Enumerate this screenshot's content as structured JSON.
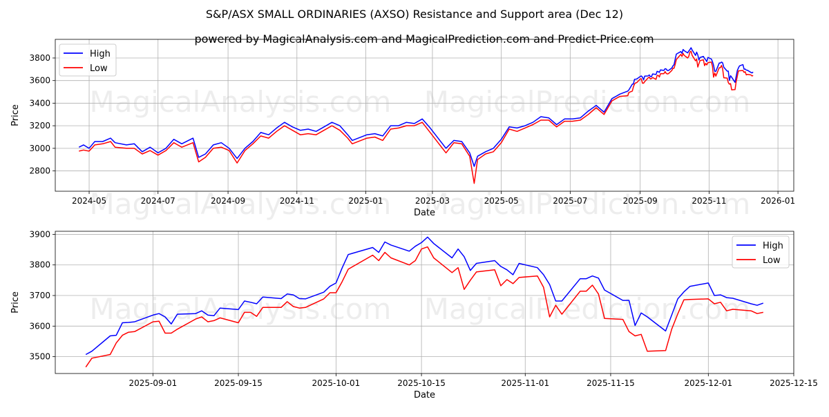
{
  "title": "S&P/ASX SMALL ORDINARIES (AXSO) Resistance and Support area (Dec 12)",
  "subtitle": "powered by MagicalAnalysis.com and MagicalPrediction.com and Predict-Price.com",
  "watermarks": [
    "MagicalAnalysis.com",
    "MagicalPrediction.com"
  ],
  "colors": {
    "high": "#0000ff",
    "low": "#ff0000",
    "grid": "#b0b0b0"
  },
  "chart_data": [
    {
      "type": "line",
      "xlabel": "Date",
      "ylabel": "Price",
      "grid": true,
      "legend_placement": "top-left",
      "legend": [
        "High",
        "Low"
      ],
      "x_ticks": [
        "2024-05",
        "2024-07",
        "2024-09",
        "2024-11",
        "2025-01",
        "2025-03",
        "2025-05",
        "2025-07",
        "2025-09",
        "2025-11",
        "2026-01"
      ],
      "y_ticks": [
        "2800",
        "3000",
        "3200",
        "3400",
        "3600",
        "3800"
      ],
      "xlim": [
        "2024-04-01",
        "2026-01-15"
      ],
      "ylim": [
        2620,
        3965
      ],
      "includes_recent_series_from_chart_2": true,
      "x": [
        "2024-04-22",
        "2024-04-26",
        "2024-05-01",
        "2024-05-06",
        "2024-05-13",
        "2024-05-20",
        "2024-05-24",
        "2024-06-03",
        "2024-06-10",
        "2024-06-17",
        "2024-06-24",
        "2024-07-01",
        "2024-07-08",
        "2024-07-15",
        "2024-07-22",
        "2024-08-01",
        "2024-08-06",
        "2024-08-12",
        "2024-08-19",
        "2024-08-26",
        "2024-09-02",
        "2024-09-09",
        "2024-09-16",
        "2024-09-23",
        "2024-09-30",
        "2024-10-07",
        "2024-10-14",
        "2024-10-21",
        "2024-10-28",
        "2024-11-04",
        "2024-11-11",
        "2024-11-18",
        "2024-11-25",
        "2024-12-02",
        "2024-12-09",
        "2024-12-16",
        "2024-12-20",
        "2025-01-02",
        "2025-01-09",
        "2025-01-16",
        "2025-01-23",
        "2025-01-30",
        "2025-02-06",
        "2025-02-13",
        "2025-02-20",
        "2025-02-27",
        "2025-03-06",
        "2025-03-13",
        "2025-03-20",
        "2025-03-27",
        "2025-04-03",
        "2025-04-07",
        "2025-04-10",
        "2025-04-17",
        "2025-04-24",
        "2025-05-01",
        "2025-05-08",
        "2025-05-15",
        "2025-05-22",
        "2025-05-29",
        "2025-06-05",
        "2025-06-12",
        "2025-06-19",
        "2025-06-26",
        "2025-07-03",
        "2025-07-10",
        "2025-07-17",
        "2025-07-24",
        "2025-07-31",
        "2025-08-07",
        "2025-08-14"
      ],
      "series": [
        {
          "name": "High",
          "values": [
            3010,
            3030,
            3000,
            3060,
            3060,
            3090,
            3050,
            3030,
            3040,
            2970,
            3010,
            2960,
            3000,
            3080,
            3040,
            3090,
            2920,
            2950,
            3030,
            3050,
            3000,
            2910,
            3000,
            3060,
            3140,
            3120,
            3180,
            3230,
            3190,
            3160,
            3170,
            3150,
            3190,
            3230,
            3200,
            3120,
            3070,
            3120,
            3130,
            3110,
            3200,
            3200,
            3230,
            3220,
            3260,
            3180,
            3090,
            3000,
            3070,
            3060,
            2960,
            2840,
            2930,
            2970,
            3000,
            3080,
            3190,
            3180,
            3200,
            3230,
            3280,
            3270,
            3210,
            3260,
            3260,
            3270,
            3330,
            3380,
            3320,
            3440,
            3480
          ]
        },
        {
          "name": "Low",
          "values": [
            2975,
            2985,
            2975,
            3030,
            3040,
            3060,
            3010,
            3000,
            3000,
            2950,
            2980,
            2940,
            2980,
            3050,
            3010,
            3050,
            2880,
            2920,
            3000,
            3010,
            2980,
            2870,
            2980,
            3040,
            3110,
            3090,
            3150,
            3200,
            3160,
            3120,
            3130,
            3120,
            3160,
            3200,
            3160,
            3090,
            3040,
            3090,
            3100,
            3070,
            3170,
            3180,
            3200,
            3200,
            3230,
            3140,
            3050,
            2960,
            3050,
            3040,
            2930,
            2690,
            2900,
            2950,
            2970,
            3050,
            3170,
            3150,
            3180,
            3210,
            3250,
            3250,
            3190,
            3240,
            3240,
            3250,
            3300,
            3360,
            3300,
            3420,
            3460
          ]
        }
      ]
    },
    {
      "type": "line",
      "xlabel": "Date",
      "ylabel": "Price",
      "grid": true,
      "legend_placement": "top-right",
      "legend": [
        "High",
        "Low"
      ],
      "x_ticks": [
        "2025-09-01",
        "2025-09-15",
        "2025-10-01",
        "2025-10-15",
        "2025-11-01",
        "2025-11-15",
        "2025-12-01",
        "2025-12-15"
      ],
      "y_ticks": [
        "3500",
        "3600",
        "3700",
        "3800",
        "3900"
      ],
      "xlim": [
        "2025-08-16",
        "2025-12-15"
      ],
      "ylim": [
        3445,
        3910
      ],
      "x": [
        "2025-08-21",
        "2025-08-22",
        "2025-08-25",
        "2025-08-26",
        "2025-08-27",
        "2025-08-28",
        "2025-08-29",
        "2025-09-01",
        "2025-09-02",
        "2025-09-03",
        "2025-09-04",
        "2025-09-05",
        "2025-09-08",
        "2025-09-09",
        "2025-09-10",
        "2025-09-11",
        "2025-09-12",
        "2025-09-15",
        "2025-09-16",
        "2025-09-17",
        "2025-09-18",
        "2025-09-19",
        "2025-09-22",
        "2025-09-23",
        "2025-09-24",
        "2025-09-25",
        "2025-09-26",
        "2025-09-29",
        "2025-09-30",
        "2025-10-01",
        "2025-10-02",
        "2025-10-03",
        "2025-10-07",
        "2025-10-08",
        "2025-10-09",
        "2025-10-10",
        "2025-10-13",
        "2025-10-14",
        "2025-10-15",
        "2025-10-16",
        "2025-10-17",
        "2025-10-20",
        "2025-10-21",
        "2025-10-22",
        "2025-10-23",
        "2025-10-24",
        "2025-10-27",
        "2025-10-28",
        "2025-10-29",
        "2025-10-30",
        "2025-10-31",
        "2025-11-03",
        "2025-11-04",
        "2025-11-05",
        "2025-11-06",
        "2025-11-07",
        "2025-11-10",
        "2025-11-11",
        "2025-11-12",
        "2025-11-13",
        "2025-11-14",
        "2025-11-17",
        "2025-11-18",
        "2025-11-19",
        "2025-11-20",
        "2025-11-21",
        "2025-11-24",
        "2025-11-25",
        "2025-11-26",
        "2025-11-27",
        "2025-11-28",
        "2025-12-01",
        "2025-12-02",
        "2025-12-03",
        "2025-12-04",
        "2025-12-05",
        "2025-12-08",
        "2025-12-09",
        "2025-12-10"
      ],
      "series": [
        {
          "name": "High",
          "values": [
            3507,
            3518,
            3568,
            3570,
            3611,
            3612,
            3614,
            3636,
            3641,
            3630,
            3607,
            3639,
            3641,
            3650,
            3636,
            3634,
            3659,
            3654,
            3682,
            3678,
            3673,
            3695,
            3690,
            3705,
            3702,
            3690,
            3689,
            3711,
            3730,
            3741,
            3790,
            3834,
            3857,
            3841,
            3875,
            3865,
            3845,
            3861,
            3873,
            3891,
            3870,
            3823,
            3852,
            3827,
            3782,
            3805,
            3814,
            3795,
            3784,
            3768,
            3805,
            3791,
            3768,
            3736,
            3682,
            3682,
            3755,
            3755,
            3764,
            3757,
            3718,
            3684,
            3684,
            3602,
            3643,
            3630,
            3584,
            3636,
            3689,
            3712,
            3730,
            3741,
            3700,
            3702,
            3693,
            3691,
            3673,
            3668,
            3675
          ]
        },
        {
          "name": "Low",
          "values": [
            3466,
            3495,
            3507,
            3545,
            3570,
            3580,
            3582,
            3614,
            3616,
            3577,
            3577,
            3590,
            3623,
            3630,
            3614,
            3618,
            3627,
            3611,
            3645,
            3645,
            3632,
            3661,
            3661,
            3680,
            3664,
            3659,
            3661,
            3689,
            3709,
            3709,
            3745,
            3786,
            3832,
            3814,
            3841,
            3823,
            3800,
            3814,
            3852,
            3859,
            3823,
            3775,
            3791,
            3720,
            3750,
            3777,
            3784,
            3732,
            3752,
            3739,
            3759,
            3764,
            3727,
            3630,
            3668,
            3639,
            3714,
            3714,
            3734,
            3705,
            3625,
            3622,
            3582,
            3568,
            3573,
            3518,
            3520,
            3590,
            3640,
            3686,
            3687,
            3689,
            3673,
            3678,
            3650,
            3655,
            3650,
            3641,
            3645
          ]
        }
      ]
    }
  ]
}
